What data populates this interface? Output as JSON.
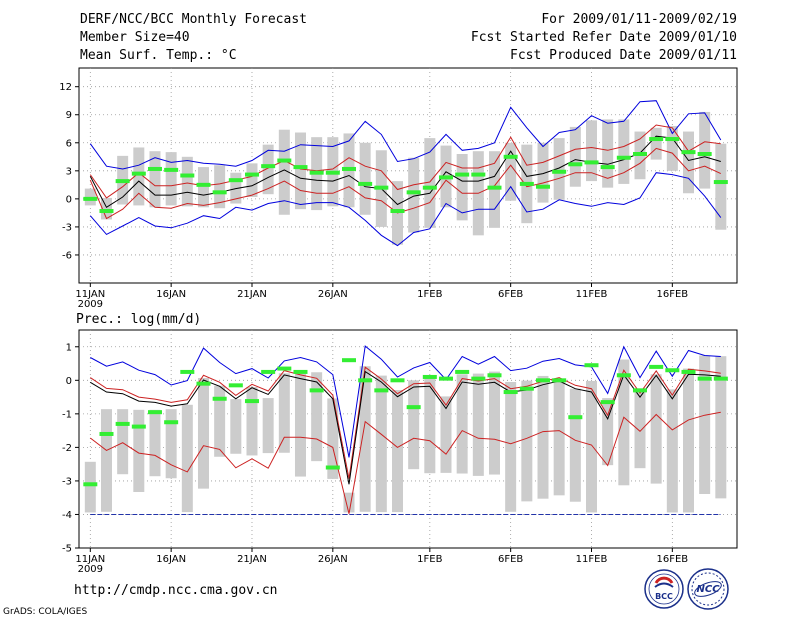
{
  "header": {
    "left": [
      "DERF/NCC/BCC Monthly Forecast",
      "Member Size=40",
      "Mean Surf. Temp.: °C"
    ],
    "right": [
      "For 2009/01/11-2009/02/19",
      "Fcst Started Refer Date 2009/01/10",
      "Fcst Produced Date 2009/01/11"
    ]
  },
  "footer": {
    "url": "http://cmdp.ncc.cma.gov.cn",
    "credit": "GrADS: COLA/IGES"
  },
  "logos": {
    "left": "BCC",
    "right": "NCC"
  },
  "colors": {
    "bar": "#cccccc",
    "median": "#000000",
    "inner": "#cc2222",
    "outer": "#0000dd",
    "obs": "#33ee33",
    "threshold": "#2233aa"
  },
  "chart_data": [
    {
      "type": "line",
      "title": "Mean Surf. Temp.: °C",
      "x_start_label": "11JAN 2009",
      "xtick_labels": [
        "11JAN",
        "16JAN",
        "21JAN",
        "26JAN",
        "1FEB",
        "6FEB",
        "11FEB",
        "16FEB"
      ],
      "xtick_days": [
        0,
        5,
        10,
        15,
        21,
        26,
        31,
        36
      ],
      "xlim": [
        -0.7,
        40
      ],
      "ylim": [
        -9,
        14
      ],
      "yticks": [
        12,
        9,
        6,
        3,
        0,
        -3,
        -6
      ],
      "days": 40,
      "median": [
        2.4,
        -0.9,
        0.2,
        1.9,
        0.4,
        0.4,
        0.7,
        0.4,
        0.7,
        1.1,
        1.4,
        2.3,
        3.1,
        2.2,
        2.0,
        1.9,
        2.5,
        1.3,
        1.1,
        -0.6,
        0.3,
        0.6,
        2.9,
        1.9,
        1.9,
        2.4,
        5.1,
        2.4,
        2.7,
        3.3,
        4.2,
        3.9,
        3.7,
        4.2,
        4.9,
        6.7,
        6.5,
        4.1,
        4.5,
        4.0
      ],
      "inner_upper": [
        2.6,
        0.1,
        1.3,
        2.8,
        1.4,
        1.4,
        1.7,
        1.4,
        1.6,
        2.0,
        2.4,
        3.3,
        4.1,
        3.2,
        3.0,
        3.2,
        4.4,
        3.5,
        3.0,
        1.0,
        1.5,
        1.8,
        3.9,
        3.3,
        3.3,
        3.8,
        6.6,
        3.6,
        3.9,
        4.6,
        5.3,
        5.5,
        5.2,
        5.6,
        6.4,
        7.9,
        7.6,
        5.1,
        6.1,
        5.9
      ],
      "inner_lower": [
        2.0,
        -2.1,
        -1.1,
        0.6,
        -0.9,
        -1.0,
        -0.5,
        -0.7,
        -0.4,
        0.0,
        0.4,
        1.1,
        1.9,
        0.9,
        0.6,
        0.6,
        1.3,
        0.1,
        -0.2,
        -1.5,
        -1.0,
        -0.4,
        2.0,
        0.6,
        0.6,
        1.4,
        3.6,
        1.3,
        1.7,
        2.2,
        2.8,
        2.8,
        2.2,
        2.8,
        3.8,
        5.4,
        4.9,
        3.0,
        3.5,
        2.7
      ],
      "outer_upper": [
        5.9,
        3.5,
        3.2,
        3.6,
        4.4,
        3.9,
        4.1,
        3.8,
        3.7,
        3.5,
        4.1,
        5.2,
        5.1,
        5.8,
        5.7,
        5.6,
        6.2,
        8.3,
        6.9,
        4.0,
        4.3,
        5.0,
        6.9,
        5.2,
        5.4,
        6.0,
        9.8,
        7.6,
        5.6,
        7.1,
        7.4,
        8.9,
        8.1,
        8.3,
        10.4,
        10.5,
        7.0,
        9.1,
        9.2,
        6.3
      ],
      "outer_lower": [
        -1.8,
        -3.8,
        -2.9,
        -2.0,
        -2.9,
        -3.1,
        -2.6,
        -1.8,
        -2.1,
        -0.9,
        -1.2,
        -0.5,
        -0.2,
        -0.6,
        -0.4,
        -0.4,
        -0.9,
        -2.3,
        -3.9,
        -5.0,
        -3.6,
        -3.2,
        -0.5,
        -1.5,
        -1.1,
        -1.1,
        1.3,
        -1.4,
        -1.1,
        -0.1,
        -0.5,
        -0.8,
        -0.4,
        -0.6,
        0.1,
        2.8,
        2.6,
        2.2,
        0.3,
        -2.0
      ],
      "bar_top": [
        1.1,
        0.1,
        4.6,
        5.5,
        5.1,
        5.0,
        4.5,
        3.4,
        3.6,
        2.8,
        3.8,
        5.8,
        7.4,
        7.1,
        6.6,
        6.6,
        7.0,
        6.0,
        5.2,
        1.9,
        4.4,
        6.5,
        5.7,
        4.8,
        5.1,
        5.1,
        6.0,
        5.8,
        6.0,
        6.5,
        7.7,
        8.4,
        8.5,
        8.5,
        7.2,
        7.6,
        7.8,
        7.2,
        9.3,
        5.9
      ],
      "bar_bottom": [
        -0.7,
        -2.2,
        -0.6,
        -0.7,
        -0.9,
        -0.7,
        -0.8,
        -0.9,
        -1.0,
        -0.5,
        0.2,
        0.5,
        -1.7,
        -1.1,
        -1.2,
        -0.8,
        -0.9,
        -1.7,
        -3.0,
        -4.9,
        -3.6,
        -3.1,
        -0.9,
        -2.3,
        -3.9,
        -3.1,
        -0.2,
        -2.6,
        -0.4,
        -0.1,
        1.3,
        1.9,
        1.2,
        1.6,
        2.1,
        4.2,
        3.0,
        0.6,
        1.1,
        -3.3
      ],
      "obs": [
        0.0,
        -1.3,
        1.9,
        2.7,
        3.2,
        3.1,
        2.5,
        1.5,
        0.7,
        2.0,
        2.6,
        3.5,
        4.1,
        3.4,
        2.8,
        2.8,
        3.2,
        1.6,
        1.2,
        -1.3,
        0.7,
        1.2,
        2.3,
        2.6,
        2.6,
        1.2,
        4.5,
        1.6,
        1.3,
        2.9,
        3.7,
        3.9,
        3.4,
        4.4,
        4.8,
        6.4,
        6.4,
        5.0,
        4.8,
        1.8
      ]
    },
    {
      "type": "line",
      "title": "Prec.: log(mm/d)",
      "x_start_label": "11JAN 2009",
      "xtick_labels": [
        "11JAN",
        "16JAN",
        "21JAN",
        "26JAN",
        "1FEB",
        "6FEB",
        "11FEB",
        "16FEB"
      ],
      "xtick_days": [
        0,
        5,
        10,
        15,
        21,
        26,
        31,
        36
      ],
      "xlim": [
        -0.7,
        40
      ],
      "ylim": [
        -5,
        1.5
      ],
      "yticks": [
        1,
        0,
        -1,
        -2,
        -3,
        -4,
        -5
      ],
      "days": 40,
      "median": [
        -0.06,
        -0.35,
        -0.4,
        -0.62,
        -0.66,
        -0.77,
        -0.7,
        0.01,
        -0.18,
        -0.55,
        -0.22,
        -0.42,
        0.16,
        0.05,
        -0.05,
        -0.55,
        -3.1,
        0.26,
        -0.05,
        -0.49,
        -0.2,
        -0.18,
        -0.84,
        -0.05,
        -0.12,
        -0.06,
        -0.35,
        -0.29,
        -0.13,
        -0.02,
        -0.25,
        -0.35,
        -1.15,
        0.16,
        -0.5,
        0.15,
        -0.55,
        0.18,
        0.16,
        0.12
      ],
      "inner_upper": [
        0.08,
        -0.24,
        -0.28,
        -0.5,
        -0.56,
        -0.66,
        -0.58,
        0.15,
        -0.06,
        -0.45,
        -0.12,
        -0.32,
        0.29,
        0.16,
        0.06,
        -0.44,
        -2.93,
        0.39,
        0.04,
        -0.4,
        -0.1,
        -0.08,
        -0.74,
        0.05,
        -0.02,
        0.05,
        -0.25,
        -0.18,
        -0.03,
        0.08,
        -0.15,
        -0.25,
        -1.04,
        0.3,
        -0.38,
        0.28,
        -0.44,
        0.33,
        0.28,
        0.21
      ],
      "inner_lower": [
        -1.72,
        -2.09,
        -1.86,
        -2.17,
        -2.24,
        -2.52,
        -2.73,
        -1.95,
        -2.06,
        -2.61,
        -2.34,
        -2.62,
        -1.7,
        -1.7,
        -1.75,
        -2.0,
        -3.98,
        -1.23,
        -1.61,
        -2.0,
        -1.73,
        -1.8,
        -2.2,
        -1.5,
        -1.73,
        -1.76,
        -1.89,
        -1.73,
        -1.53,
        -1.5,
        -1.79,
        -1.93,
        -2.54,
        -1.1,
        -1.52,
        -1.02,
        -1.48,
        -1.18,
        -1.04,
        -0.95
      ],
      "outer_upper": [
        0.68,
        0.42,
        0.55,
        0.3,
        0.17,
        -0.14,
        -0.01,
        0.96,
        0.53,
        0.2,
        0.35,
        0.07,
        0.58,
        0.68,
        0.55,
        0.17,
        -2.3,
        1.02,
        0.63,
        0.1,
        0.37,
        0.53,
        0.02,
        0.71,
        0.48,
        0.71,
        0.29,
        0.36,
        0.57,
        0.65,
        0.46,
        0.4,
        -0.39,
        1.0,
        0.08,
        0.87,
        0.12,
        0.89,
        0.74,
        0.71
      ],
      "threshold": -4.0,
      "bar_top": [
        -2.43,
        -0.86,
        -0.86,
        -0.88,
        -0.88,
        -0.86,
        -0.73,
        0.07,
        -0.16,
        -0.56,
        -0.2,
        -0.53,
        0.21,
        0.19,
        0.24,
        -0.54,
        -3.35,
        0.42,
        0.14,
        -0.29,
        0.0,
        0.14,
        -0.48,
        0.18,
        0.2,
        0.26,
        -0.05,
        -0.01,
        0.13,
        -0.02,
        -0.25,
        -0.02,
        -0.53,
        0.62,
        -0.24,
        0.18,
        -0.27,
        0.35,
        0.74,
        0.72
      ],
      "bar_bottom": [
        -3.94,
        -3.92,
        -2.8,
        -3.33,
        -2.86,
        -2.92,
        -3.93,
        -3.23,
        -2.28,
        -2.19,
        -2.24,
        -2.17,
        -2.16,
        -2.87,
        -2.41,
        -2.94,
        -3.94,
        -3.92,
        -3.93,
        -3.93,
        -2.65,
        -2.77,
        -2.76,
        -2.78,
        -2.85,
        -2.81,
        -3.92,
        -3.61,
        -3.53,
        -3.43,
        -3.62,
        -3.94,
        -2.53,
        -3.13,
        -2.62,
        -3.08,
        -3.94,
        -3.94,
        -3.39,
        -3.52
      ],
      "obs": [
        -3.1,
        -1.6,
        -1.3,
        -1.38,
        -0.95,
        -1.25,
        0.25,
        -0.1,
        -0.55,
        -0.15,
        -0.62,
        0.25,
        0.35,
        0.25,
        -0.3,
        -2.6,
        0.6,
        0.0,
        -0.3,
        0.0,
        -0.8,
        0.1,
        0.05,
        0.25,
        0.05,
        0.15,
        -0.35,
        -0.25,
        0.0,
        0.0,
        -1.1,
        0.45,
        -0.65,
        0.15,
        -0.3,
        0.4,
        0.3,
        0.25,
        0.05,
        0.05
      ]
    }
  ]
}
